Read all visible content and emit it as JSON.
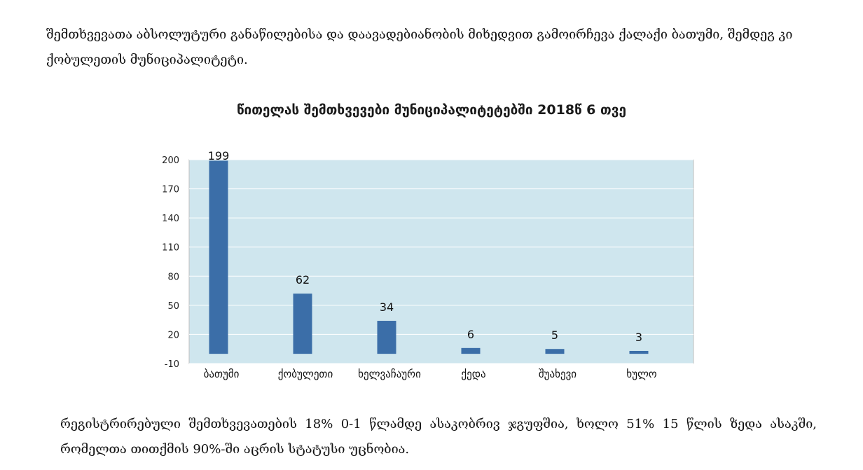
{
  "document": {
    "paragraph_top": "შემთხვევათა აბსოლუტური განაწილებისა და დაავადებიანობის მიხედვით გამოირჩევა ქალაქი ბათუმი, შემდეგ კი ქობულეთის მუნიციპალიტეტი.",
    "paragraph_bottom": "რეგისტრირებული შემთხვევათების 18% 0-1 წლამდე ასაკობრივ ჯგუფშია, ხოლო 51% 15 წლის ზედა ასაკში, რომელთა თითქმის 90%-ში აცრის სტატუსი უცნობია."
  },
  "chart_data": {
    "type": "bar",
    "title": "წითელას შემთხვევები მუნიციპალიტეტებში 2018წ 6 თვე",
    "categories": [
      "ბათუმი",
      "ქობულეთი",
      "ხელვაჩაური",
      "ქედა",
      "შუახევი",
      "ხულო"
    ],
    "values": [
      199,
      62,
      34,
      6,
      5,
      3
    ],
    "data_labels": [
      "199",
      "62",
      "34",
      "6",
      "5",
      "3"
    ],
    "yticks": [
      -10,
      20,
      50,
      80,
      110,
      140,
      170,
      200
    ],
    "ylim": [
      -10,
      200
    ],
    "xlabel": "",
    "ylabel": "",
    "grid": true,
    "legend": "none",
    "colors": {
      "bar": "#3b6ea8",
      "plot_background": "#cfe6ee",
      "gridline": "#ffffff",
      "axis": "#bfbfbf"
    }
  }
}
